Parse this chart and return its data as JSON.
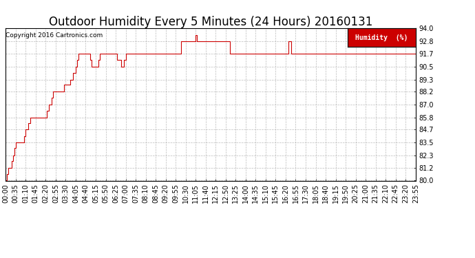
{
  "title": "Outdoor Humidity Every 5 Minutes (24 Hours) 20160131",
  "copyright_text": "Copyright 2016 Cartronics.com",
  "legend_label": "Humidity  (%)",
  "legend_bg": "#cc0000",
  "legend_fg": "#ffffff",
  "line_color": "#cc0000",
  "bg_color": "#ffffff",
  "grid_color": "#aaaaaa",
  "ylim": [
    80.0,
    94.0
  ],
  "yticks": [
    80.0,
    81.2,
    82.3,
    83.5,
    84.7,
    85.8,
    87.0,
    88.2,
    89.3,
    90.5,
    91.7,
    92.8,
    94.0
  ],
  "title_fontsize": 12,
  "axis_fontsize": 7,
  "humidity_data": [
    80.0,
    80.6,
    81.2,
    81.2,
    81.8,
    82.3,
    83.0,
    83.5,
    83.5,
    83.5,
    83.5,
    83.5,
    83.5,
    84.1,
    84.7,
    84.7,
    85.3,
    85.8,
    85.8,
    85.8,
    85.8,
    85.8,
    85.8,
    85.8,
    85.8,
    85.8,
    85.8,
    85.8,
    85.8,
    86.4,
    87.0,
    87.0,
    87.6,
    88.2,
    88.2,
    88.2,
    88.2,
    88.2,
    88.2,
    88.2,
    88.2,
    88.8,
    88.8,
    88.8,
    88.8,
    89.3,
    89.3,
    89.9,
    89.9,
    90.5,
    91.1,
    91.7,
    91.7,
    91.7,
    91.7,
    91.7,
    91.7,
    91.7,
    91.7,
    91.1,
    90.5,
    90.5,
    90.5,
    90.5,
    90.5,
    91.1,
    91.7,
    91.7,
    91.7,
    91.7,
    91.7,
    91.7,
    91.7,
    91.7,
    91.7,
    91.7,
    91.7,
    91.7,
    91.1,
    91.1,
    91.1,
    90.5,
    90.5,
    91.1,
    91.7,
    91.7,
    91.7,
    91.7,
    91.7,
    91.7,
    91.7,
    91.7,
    91.7,
    91.7,
    91.7,
    91.7,
    91.7,
    91.7,
    91.7,
    91.7,
    91.7,
    91.7,
    91.7,
    91.7,
    91.7,
    91.7,
    91.7,
    91.7,
    91.7,
    91.7,
    91.7,
    91.7,
    91.7,
    91.7,
    91.7,
    91.7,
    91.7,
    91.7,
    91.7,
    91.7,
    91.7,
    91.7,
    91.7,
    92.8,
    92.8,
    92.8,
    92.8,
    92.8,
    92.8,
    92.8,
    92.8,
    92.8,
    92.8,
    93.4,
    92.8,
    92.8,
    92.8,
    92.8,
    92.8,
    92.8,
    92.8,
    92.8,
    92.8,
    92.8,
    92.8,
    92.8,
    92.8,
    92.8,
    92.8,
    92.8,
    92.8,
    92.8,
    92.8,
    92.8,
    92.8,
    92.8,
    92.8,
    91.7,
    91.7,
    91.7,
    91.7,
    91.7,
    91.7,
    91.7,
    91.7,
    91.7,
    91.7,
    91.7,
    91.7,
    91.7,
    91.7,
    91.7,
    91.7,
    91.7,
    91.7,
    91.7,
    91.7,
    91.7,
    91.7,
    91.7,
    91.7,
    91.7,
    91.7,
    91.7,
    91.7,
    91.7,
    91.7,
    91.7,
    91.7,
    91.7,
    91.7,
    91.7,
    91.7,
    91.7,
    91.7,
    91.7,
    91.7,
    91.7,
    92.8,
    92.8,
    91.7,
    91.7,
    91.7,
    91.7,
    91.7,
    91.7,
    91.7,
    91.7,
    91.7,
    91.7,
    91.7,
    91.7,
    91.7,
    91.7,
    91.7,
    91.7,
    91.7,
    91.7,
    91.7,
    91.7,
    91.7,
    91.7,
    91.7,
    91.7,
    91.7,
    91.7,
    91.7,
    91.7,
    91.7,
    91.7,
    91.7,
    91.7,
    91.7,
    91.7,
    91.7,
    91.7,
    91.7,
    91.7,
    91.7,
    91.7,
    91.7,
    91.7,
    91.7,
    91.7,
    91.7,
    91.7,
    91.7,
    91.7,
    91.7,
    91.7,
    91.7,
    91.7,
    91.7,
    91.7,
    91.7,
    91.7,
    91.7,
    91.7,
    91.7,
    91.7,
    91.7,
    91.7,
    91.7,
    91.7,
    91.7,
    91.7,
    91.7,
    91.7,
    91.7,
    91.7,
    91.7,
    91.7,
    91.7,
    91.7,
    91.7,
    91.7,
    91.7,
    91.7,
    91.7,
    91.7,
    91.7,
    91.7,
    91.7,
    91.7,
    91.7,
    91.7,
    91.7,
    91.7
  ],
  "x_tick_labels": [
    "00:00",
    "00:35",
    "01:10",
    "01:45",
    "02:20",
    "02:55",
    "03:30",
    "04:05",
    "04:40",
    "05:15",
    "05:50",
    "06:25",
    "07:00",
    "07:35",
    "08:10",
    "08:45",
    "09:20",
    "09:55",
    "10:30",
    "11:05",
    "11:40",
    "12:15",
    "12:50",
    "13:25",
    "14:00",
    "14:35",
    "15:10",
    "15:45",
    "16:20",
    "16:55",
    "17:30",
    "18:05",
    "18:40",
    "19:15",
    "19:50",
    "20:25",
    "21:00",
    "21:35",
    "22:10",
    "22:45",
    "23:20",
    "23:55"
  ],
  "x_tick_step": 7
}
